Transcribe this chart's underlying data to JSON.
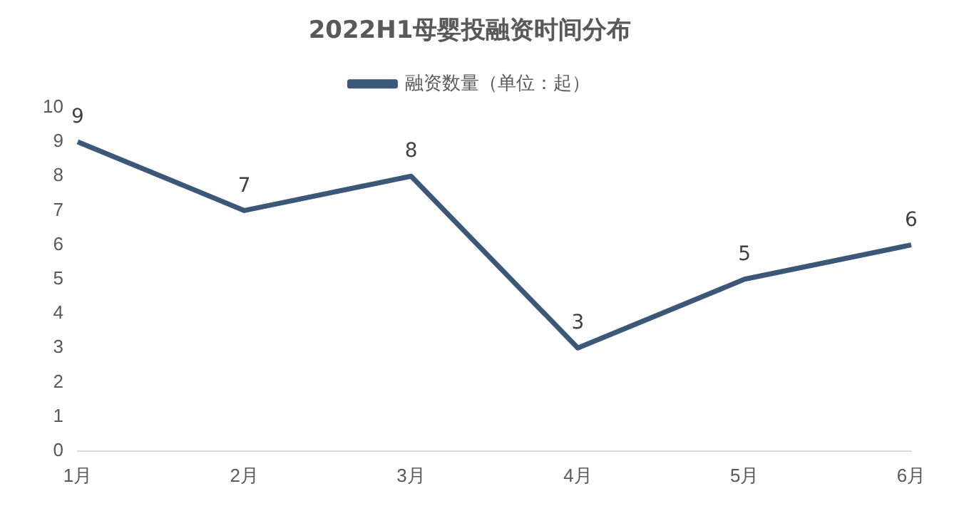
{
  "chart_data": {
    "type": "line",
    "title": "2022H1母婴投融资时间分布",
    "categories": [
      "1月",
      "2月",
      "3月",
      "4月",
      "5月",
      "6月"
    ],
    "series": [
      {
        "name": "融资数量（单位：起）",
        "color": "#3b5878",
        "values": [
          9,
          7,
          8,
          3,
          5,
          6
        ]
      }
    ],
    "ylim": [
      0,
      10
    ],
    "yticks": [
      0,
      1,
      2,
      3,
      4,
      5,
      6,
      7,
      8,
      9,
      10
    ],
    "grid": false,
    "legend": "top",
    "data_labels": true,
    "marker": "none",
    "line_style": "solid"
  }
}
